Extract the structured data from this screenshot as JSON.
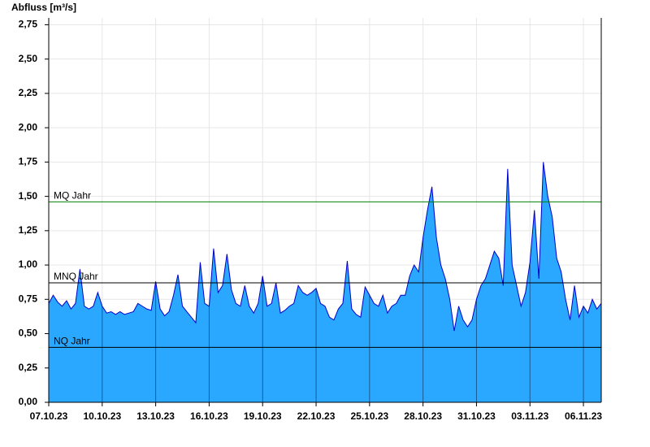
{
  "chart_data": {
    "type": "area",
    "title": "Abfluss [m³/s]",
    "x": [
      0,
      0.25,
      0.5,
      0.75,
      1,
      1.25,
      1.5,
      1.75,
      2,
      2.25,
      2.5,
      2.75,
      3,
      3.25,
      3.5,
      3.75,
      4,
      4.25,
      4.5,
      4.75,
      5,
      5.25,
      5.5,
      5.75,
      6,
      6.25,
      6.5,
      6.75,
      7,
      7.25,
      7.5,
      7.75,
      8,
      8.25,
      8.5,
      8.75,
      9,
      9.25,
      9.5,
      9.75,
      10,
      10.25,
      10.5,
      10.75,
      11,
      11.25,
      11.5,
      11.75,
      12,
      12.25,
      12.5,
      12.75,
      13,
      13.25,
      13.5,
      13.75,
      14,
      14.25,
      14.5,
      14.75,
      15,
      15.25,
      15.5,
      15.75,
      16,
      16.25,
      16.5,
      16.75,
      17,
      17.25,
      17.5,
      17.75,
      18,
      18.25,
      18.5,
      18.75,
      19,
      19.25,
      19.5,
      19.75,
      20,
      20.25,
      20.5,
      20.75,
      21,
      21.25,
      21.5,
      21.75,
      22,
      22.25,
      22.5,
      22.75,
      23,
      23.25,
      23.5,
      23.75,
      24,
      24.25,
      24.5,
      24.75,
      25,
      25.25,
      25.5,
      25.75,
      26,
      26.25,
      26.5,
      26.75,
      27,
      27.25,
      27.5,
      27.75,
      28,
      28.25,
      28.5,
      28.75,
      29,
      29.25,
      29.5,
      29.75,
      30,
      30.25,
      30.5,
      30.75,
      31
    ],
    "values": [
      0.72,
      0.78,
      0.73,
      0.7,
      0.74,
      0.68,
      0.72,
      0.97,
      0.7,
      0.68,
      0.7,
      0.8,
      0.7,
      0.65,
      0.66,
      0.64,
      0.66,
      0.64,
      0.65,
      0.66,
      0.72,
      0.7,
      0.68,
      0.67,
      0.88,
      0.68,
      0.63,
      0.66,
      0.78,
      0.93,
      0.7,
      0.66,
      0.62,
      0.58,
      1.02,
      0.72,
      0.7,
      1.12,
      0.8,
      0.85,
      1.08,
      0.82,
      0.72,
      0.7,
      0.85,
      0.7,
      0.65,
      0.72,
      0.92,
      0.7,
      0.72,
      0.87,
      0.65,
      0.67,
      0.7,
      0.72,
      0.85,
      0.8,
      0.78,
      0.8,
      0.83,
      0.72,
      0.7,
      0.62,
      0.6,
      0.68,
      0.72,
      1.03,
      0.68,
      0.64,
      0.62,
      0.84,
      0.78,
      0.72,
      0.7,
      0.78,
      0.65,
      0.7,
      0.72,
      0.78,
      0.78,
      0.92,
      1.0,
      0.95,
      1.2,
      1.4,
      1.57,
      1.2,
      1.0,
      0.9,
      0.75,
      0.52,
      0.7,
      0.6,
      0.55,
      0.6,
      0.75,
      0.85,
      0.9,
      1.0,
      1.1,
      1.05,
      0.85,
      1.7,
      1.0,
      0.85,
      0.7,
      0.8,
      1.02,
      1.4,
      0.9,
      1.75,
      1.5,
      1.35,
      1.05,
      0.95,
      0.75,
      0.6,
      0.85,
      0.62,
      0.7,
      0.65,
      0.75,
      0.68,
      0.72
    ],
    "fill_color": "#2aa8ff",
    "line_color": "#0000cc",
    "xlim": [
      0,
      31
    ],
    "xticks": [
      {
        "value": 0,
        "label": "07.10.23"
      },
      {
        "value": 3,
        "label": "10.10.23"
      },
      {
        "value": 6,
        "label": "13.10.23"
      },
      {
        "value": 9,
        "label": "16.10.23"
      },
      {
        "value": 12,
        "label": "19.10.23"
      },
      {
        "value": 15,
        "label": "22.10.23"
      },
      {
        "value": 18,
        "label": "25.10.23"
      },
      {
        "value": 21,
        "label": "28.10.23"
      },
      {
        "value": 24,
        "label": "31.10.23"
      },
      {
        "value": 27,
        "label": "03.11.23"
      },
      {
        "value": 30,
        "label": "06.11.23"
      }
    ],
    "ylim": [
      0,
      2.8
    ],
    "yticks": [
      {
        "value": 0,
        "label": "0,00"
      },
      {
        "value": 0.25,
        "label": "0,25"
      },
      {
        "value": 0.5,
        "label": "0,50"
      },
      {
        "value": 0.75,
        "label": "0,75"
      },
      {
        "value": 1,
        "label": "1,00"
      },
      {
        "value": 1.25,
        "label": "1,25"
      },
      {
        "value": 1.5,
        "label": "1,50"
      },
      {
        "value": 1.75,
        "label": "1,75"
      },
      {
        "value": 2,
        "label": "2,00"
      },
      {
        "value": 2.25,
        "label": "2,25"
      },
      {
        "value": 2.5,
        "label": "2,50"
      },
      {
        "value": 2.75,
        "label": "2,75"
      }
    ],
    "grid": true,
    "reference_lines": [
      {
        "label": "MQ Jahr",
        "value": 1.46,
        "color": "#008000"
      },
      {
        "label": "MNQ Jahr",
        "value": 0.87,
        "color": "#000000"
      },
      {
        "label": "NQ Jahr",
        "value": 0.4,
        "color": "#000000"
      }
    ]
  }
}
